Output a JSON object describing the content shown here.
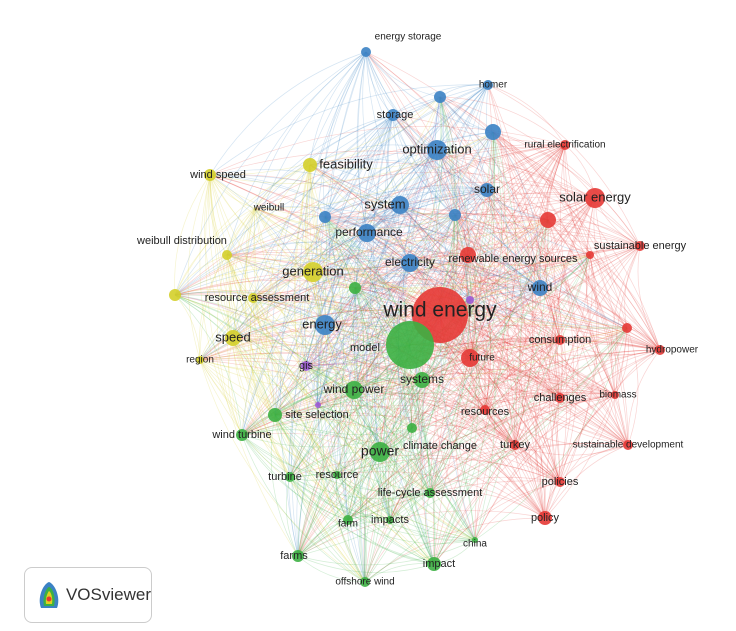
{
  "nodes": [
    {
      "label": "wind energy"
    },
    {
      "label": "solar energy"
    },
    {
      "label": "renewable energy sources"
    },
    {
      "label": "rural electrification"
    },
    {
      "label": "sustainable energy"
    },
    {
      "label": "consumption"
    },
    {
      "label": "hydropower"
    },
    {
      "label": "future"
    },
    {
      "label": "challenges"
    },
    {
      "label": "biomass"
    },
    {
      "label": "resources"
    },
    {
      "label": "turkey"
    },
    {
      "label": "sustainable development"
    },
    {
      "label": "policies"
    },
    {
      "label": "policy"
    },
    {
      "label": "energy storage"
    },
    {
      "label": "homer"
    },
    {
      "label": "storage"
    },
    {
      "label": "optimization"
    },
    {
      "label": "solar"
    },
    {
      "label": "system"
    },
    {
      "label": "performance"
    },
    {
      "label": "electricity"
    },
    {
      "label": "energy"
    },
    {
      "label": "wind"
    },
    {
      "label": "feasibility"
    },
    {
      "label": "wind speed"
    },
    {
      "label": "weibull"
    },
    {
      "label": "weibull distribution"
    },
    {
      "label": "generation"
    },
    {
      "label": "resource assessment"
    },
    {
      "label": "speed"
    },
    {
      "label": "region"
    },
    {
      "label": "model"
    },
    {
      "label": "systems"
    },
    {
      "label": "wind power"
    },
    {
      "label": "power"
    },
    {
      "label": "site selection"
    },
    {
      "label": "wind turbine"
    },
    {
      "label": "turbine"
    },
    {
      "label": "resource"
    },
    {
      "label": "climate change"
    },
    {
      "label": "life-cycle assessment"
    },
    {
      "label": "impacts"
    },
    {
      "label": "farm"
    },
    {
      "label": "farms"
    },
    {
      "label": "impact"
    },
    {
      "label": "china"
    },
    {
      "label": "offshore wind"
    },
    {
      "label": "gis"
    }
  ],
  "logo": {
    "text": "VOSviewer"
  }
}
